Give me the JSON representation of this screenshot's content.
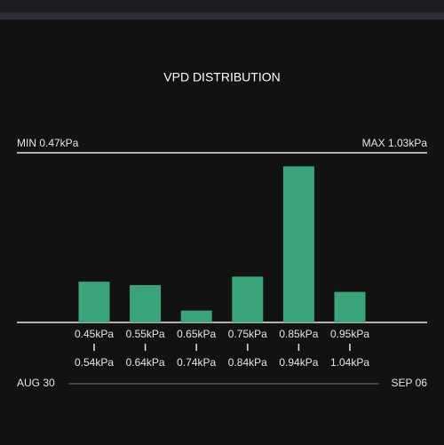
{
  "chart_data": {
    "type": "bar",
    "title": "VPD DISTRIBUTION",
    "min_label": "MIN 0.47kPa",
    "max_label": "MAX 1.03kPa",
    "categories": [
      {
        "low": "0.45kPa",
        "high": "0.54kPa"
      },
      {
        "low": "0.55kPa",
        "high": "0.64kPa"
      },
      {
        "low": "0.65kPa",
        "high": "0.74kPa"
      },
      {
        "low": "0.75kPa",
        "high": "0.84kPa"
      },
      {
        "low": "0.85kPa",
        "high": "0.94kPa"
      },
      {
        "low": "0.95kPa",
        "high": "1.04kPa"
      }
    ],
    "values": [
      24,
      22,
      7,
      27,
      92,
      18
    ],
    "ylim": [
      0,
      100
    ],
    "color": "#3aa57a",
    "start_date": "AUG 30",
    "end_date": "SEP 06"
  }
}
